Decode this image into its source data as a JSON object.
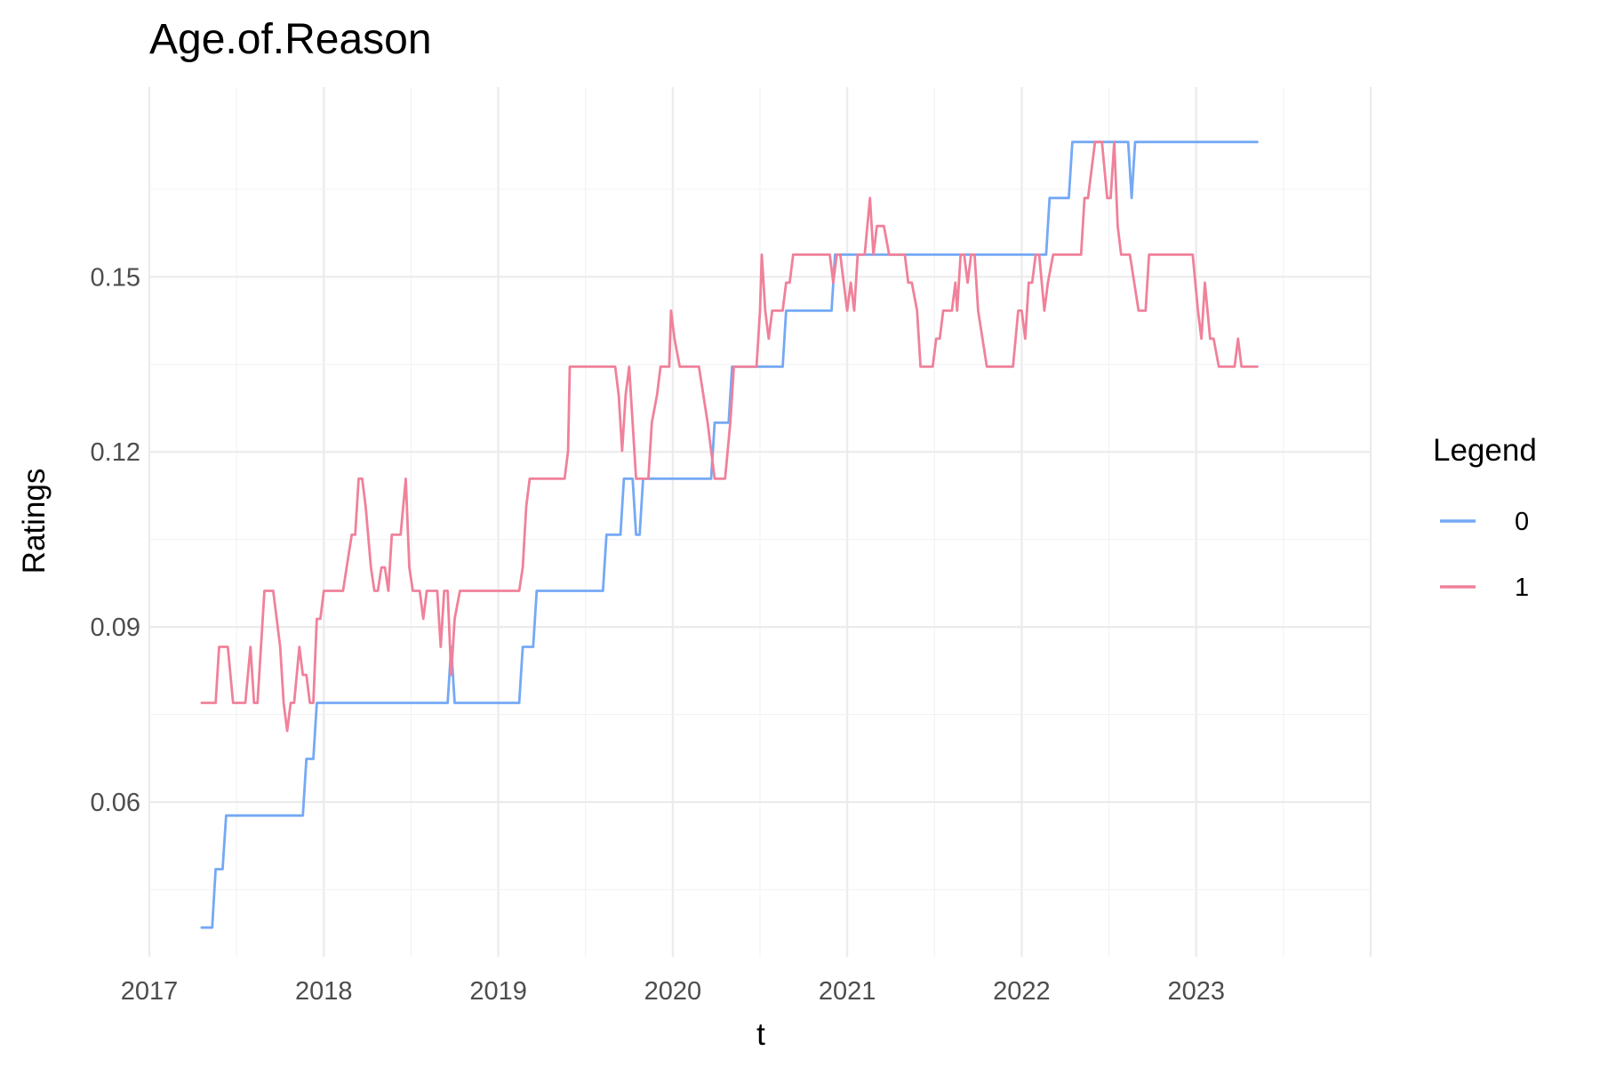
{
  "chart_data": {
    "type": "line",
    "title": "Age.of.Reason",
    "xlabel": "t",
    "ylabel": "Ratings",
    "xlim": [
      2017.0,
      2024.0
    ],
    "ylim": [
      0.0335,
      0.1825
    ],
    "x_ticks": [
      2017,
      2018,
      2019,
      2020,
      2021,
      2022,
      2023
    ],
    "x_tick_labels": [
      "2017",
      "2018",
      "2019",
      "2020",
      "2021",
      "2022",
      "2023"
    ],
    "y_ticks": [
      0.06,
      0.09,
      0.12,
      0.15
    ],
    "y_tick_labels": [
      "0.06",
      "0.09",
      "0.12",
      "0.15"
    ],
    "grid": true,
    "legend": {
      "title": "Legend",
      "position": "right"
    },
    "series": [
      {
        "name": "0",
        "color": "#74a9f5",
        "points": [
          [
            2017.3,
            0.0385
          ],
          [
            2017.36,
            0.0385
          ],
          [
            2017.38,
            0.0485
          ],
          [
            2017.42,
            0.0485
          ],
          [
            2017.44,
            0.0577
          ],
          [
            2017.88,
            0.0577
          ],
          [
            2017.9,
            0.0674
          ],
          [
            2017.94,
            0.0674
          ],
          [
            2017.96,
            0.077
          ],
          [
            2018.71,
            0.077
          ],
          [
            2018.73,
            0.0866
          ],
          [
            2018.75,
            0.077
          ],
          [
            2019.12,
            0.077
          ],
          [
            2019.14,
            0.0866
          ],
          [
            2019.2,
            0.0866
          ],
          [
            2019.22,
            0.0962
          ],
          [
            2019.6,
            0.0962
          ],
          [
            2019.62,
            0.1058
          ],
          [
            2019.7,
            0.1058
          ],
          [
            2019.72,
            0.1154
          ],
          [
            2019.77,
            0.1154
          ],
          [
            2019.79,
            0.1058
          ],
          [
            2019.81,
            0.1058
          ],
          [
            2019.83,
            0.1154
          ],
          [
            2020.22,
            0.1154
          ],
          [
            2020.24,
            0.125
          ],
          [
            2020.32,
            0.125
          ],
          [
            2020.34,
            0.1346
          ],
          [
            2020.63,
            0.1346
          ],
          [
            2020.65,
            0.1442
          ],
          [
            2020.91,
            0.1442
          ],
          [
            2020.93,
            0.1538
          ],
          [
            2022.14,
            0.1538
          ],
          [
            2022.16,
            0.1635
          ],
          [
            2022.27,
            0.1635
          ],
          [
            2022.29,
            0.1731
          ],
          [
            2022.61,
            0.1731
          ],
          [
            2022.63,
            0.1635
          ],
          [
            2022.65,
            0.1731
          ],
          [
            2023.35,
            0.1731
          ]
        ]
      },
      {
        "name": "1",
        "color": "#f0819b",
        "points": [
          [
            2017.3,
            0.077
          ],
          [
            2017.38,
            0.077
          ],
          [
            2017.4,
            0.0866
          ],
          [
            2017.45,
            0.0866
          ],
          [
            2017.48,
            0.077
          ],
          [
            2017.55,
            0.077
          ],
          [
            2017.58,
            0.0866
          ],
          [
            2017.6,
            0.077
          ],
          [
            2017.62,
            0.077
          ],
          [
            2017.66,
            0.0962
          ],
          [
            2017.71,
            0.0962
          ],
          [
            2017.75,
            0.0866
          ],
          [
            2017.77,
            0.077
          ],
          [
            2017.79,
            0.0722
          ],
          [
            2017.81,
            0.077
          ],
          [
            2017.83,
            0.077
          ],
          [
            2017.86,
            0.0866
          ],
          [
            2017.88,
            0.0818
          ],
          [
            2017.9,
            0.0818
          ],
          [
            2017.92,
            0.077
          ],
          [
            2017.94,
            0.077
          ],
          [
            2017.96,
            0.0914
          ],
          [
            2017.98,
            0.0914
          ],
          [
            2018.0,
            0.0962
          ],
          [
            2018.11,
            0.0962
          ],
          [
            2018.16,
            0.1058
          ],
          [
            2018.18,
            0.1058
          ],
          [
            2018.2,
            0.1154
          ],
          [
            2018.22,
            0.1154
          ],
          [
            2018.24,
            0.1106
          ],
          [
            2018.27,
            0.1002
          ],
          [
            2018.29,
            0.0962
          ],
          [
            2018.31,
            0.0962
          ],
          [
            2018.33,
            0.1002
          ],
          [
            2018.35,
            0.1002
          ],
          [
            2018.37,
            0.0962
          ],
          [
            2018.39,
            0.1058
          ],
          [
            2018.44,
            0.1058
          ],
          [
            2018.47,
            0.1154
          ],
          [
            2018.49,
            0.1002
          ],
          [
            2018.51,
            0.0962
          ],
          [
            2018.55,
            0.0962
          ],
          [
            2018.57,
            0.0914
          ],
          [
            2018.59,
            0.0962
          ],
          [
            2018.65,
            0.0962
          ],
          [
            2018.67,
            0.0866
          ],
          [
            2018.69,
            0.0962
          ],
          [
            2018.71,
            0.0962
          ],
          [
            2018.73,
            0.0818
          ],
          [
            2018.75,
            0.0914
          ],
          [
            2018.78,
            0.0962
          ],
          [
            2019.12,
            0.0962
          ],
          [
            2019.14,
            0.1002
          ],
          [
            2019.16,
            0.1106
          ],
          [
            2019.18,
            0.1154
          ],
          [
            2019.38,
            0.1154
          ],
          [
            2019.4,
            0.1202
          ],
          [
            2019.41,
            0.1346
          ],
          [
            2019.67,
            0.1346
          ],
          [
            2019.69,
            0.1298
          ],
          [
            2019.71,
            0.1202
          ],
          [
            2019.73,
            0.1298
          ],
          [
            2019.75,
            0.1346
          ],
          [
            2019.79,
            0.1154
          ],
          [
            2019.86,
            0.1154
          ],
          [
            2019.88,
            0.125
          ],
          [
            2019.91,
            0.1298
          ],
          [
            2019.93,
            0.1346
          ],
          [
            2019.98,
            0.1346
          ],
          [
            2019.99,
            0.1442
          ],
          [
            2020.01,
            0.1394
          ],
          [
            2020.04,
            0.1346
          ],
          [
            2020.15,
            0.1346
          ],
          [
            2020.2,
            0.125
          ],
          [
            2020.24,
            0.1154
          ],
          [
            2020.3,
            0.1154
          ],
          [
            2020.33,
            0.125
          ],
          [
            2020.35,
            0.1346
          ],
          [
            2020.48,
            0.1346
          ],
          [
            2020.5,
            0.1442
          ],
          [
            2020.51,
            0.1538
          ],
          [
            2020.53,
            0.1442
          ],
          [
            2020.55,
            0.1394
          ],
          [
            2020.57,
            0.1442
          ],
          [
            2020.63,
            0.1442
          ],
          [
            2020.65,
            0.149
          ],
          [
            2020.67,
            0.149
          ],
          [
            2020.69,
            0.1538
          ],
          [
            2020.9,
            0.1538
          ],
          [
            2020.92,
            0.149
          ],
          [
            2020.94,
            0.1538
          ],
          [
            2020.96,
            0.1538
          ],
          [
            2020.98,
            0.149
          ],
          [
            2021.0,
            0.1442
          ],
          [
            2021.02,
            0.149
          ],
          [
            2021.04,
            0.1442
          ],
          [
            2021.06,
            0.1538
          ],
          [
            2021.1,
            0.1538
          ],
          [
            2021.13,
            0.1635
          ],
          [
            2021.15,
            0.1538
          ],
          [
            2021.17,
            0.1587
          ],
          [
            2021.21,
            0.1587
          ],
          [
            2021.24,
            0.1538
          ],
          [
            2021.33,
            0.1538
          ],
          [
            2021.35,
            0.149
          ],
          [
            2021.37,
            0.149
          ],
          [
            2021.4,
            0.1442
          ],
          [
            2021.42,
            0.1346
          ],
          [
            2021.49,
            0.1346
          ],
          [
            2021.51,
            0.1394
          ],
          [
            2021.53,
            0.1394
          ],
          [
            2021.55,
            0.1442
          ],
          [
            2021.6,
            0.1442
          ],
          [
            2021.62,
            0.149
          ],
          [
            2021.63,
            0.1442
          ],
          [
            2021.65,
            0.1538
          ],
          [
            2021.67,
            0.1538
          ],
          [
            2021.69,
            0.149
          ],
          [
            2021.71,
            0.1538
          ],
          [
            2021.73,
            0.1538
          ],
          [
            2021.75,
            0.1442
          ],
          [
            2021.8,
            0.1346
          ],
          [
            2021.95,
            0.1346
          ],
          [
            2021.98,
            0.1442
          ],
          [
            2022.0,
            0.1442
          ],
          [
            2022.02,
            0.1394
          ],
          [
            2022.04,
            0.149
          ],
          [
            2022.06,
            0.149
          ],
          [
            2022.08,
            0.1538
          ],
          [
            2022.1,
            0.1538
          ],
          [
            2022.13,
            0.1442
          ],
          [
            2022.15,
            0.149
          ],
          [
            2022.18,
            0.1538
          ],
          [
            2022.34,
            0.1538
          ],
          [
            2022.36,
            0.1635
          ],
          [
            2022.38,
            0.1635
          ],
          [
            2022.42,
            0.1731
          ],
          [
            2022.46,
            0.1731
          ],
          [
            2022.49,
            0.1635
          ],
          [
            2022.51,
            0.1635
          ],
          [
            2022.53,
            0.1731
          ],
          [
            2022.55,
            0.1587
          ],
          [
            2022.57,
            0.1538
          ],
          [
            2022.62,
            0.1538
          ],
          [
            2022.67,
            0.1442
          ],
          [
            2022.71,
            0.1442
          ],
          [
            2022.73,
            0.1538
          ],
          [
            2022.98,
            0.1538
          ],
          [
            2023.01,
            0.1442
          ],
          [
            2023.03,
            0.1394
          ],
          [
            2023.05,
            0.149
          ],
          [
            2023.08,
            0.1394
          ],
          [
            2023.1,
            0.1394
          ],
          [
            2023.13,
            0.1346
          ],
          [
            2023.22,
            0.1346
          ],
          [
            2023.24,
            0.1394
          ],
          [
            2023.26,
            0.1346
          ],
          [
            2023.35,
            0.1346
          ]
        ]
      }
    ]
  }
}
